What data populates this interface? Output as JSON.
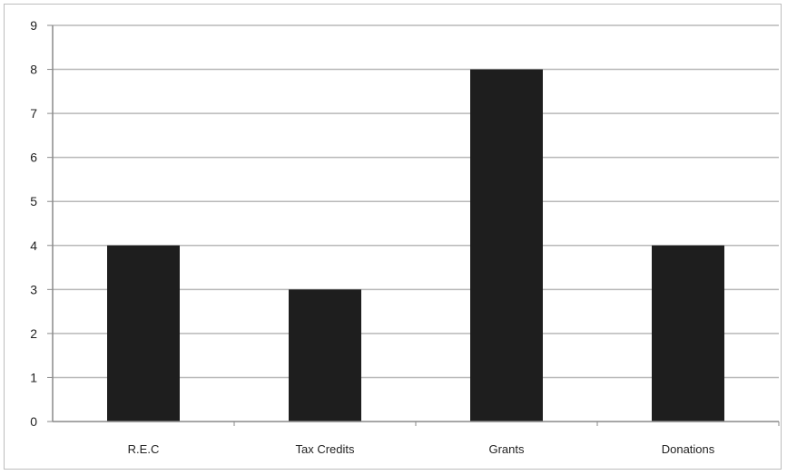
{
  "chart_data": {
    "type": "bar",
    "title": "",
    "xlabel": "",
    "ylabel": "",
    "categories": [
      "R.E.C",
      "Tax Credits",
      "Grants",
      "Donations"
    ],
    "values": [
      4,
      3,
      8,
      4
    ],
    "ylim": [
      0,
      9
    ],
    "yticks": [
      "0",
      "1",
      "2",
      "3",
      "4",
      "5",
      "6",
      "7",
      "8",
      "9"
    ],
    "grid": true,
    "legend": "none",
    "bar_color": "#1e1e1e",
    "grid_color": "#b8b8b8",
    "axis_color": "#8a8a8a"
  }
}
